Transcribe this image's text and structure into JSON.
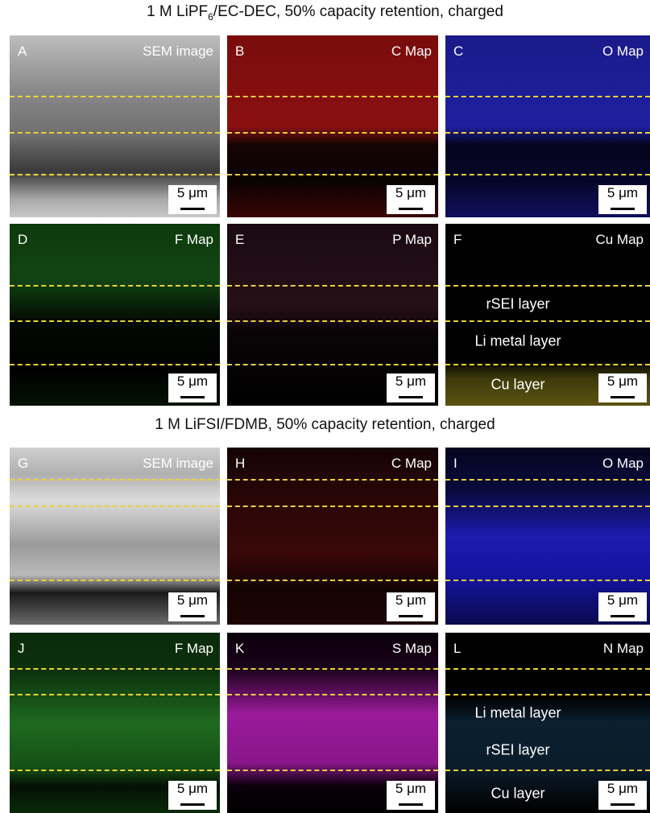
{
  "sections": [
    {
      "title": {
        "before": "1 M LiPF",
        "sub": "6",
        "after": "/EC-DEC, 50% capacity retention, charged"
      },
      "panels": [
        {
          "letter": "A",
          "label": "SEM image",
          "scale": "5 μm",
          "layers": []
        },
        {
          "letter": "B",
          "label": "C Map",
          "scale": "5 μm",
          "layers": []
        },
        {
          "letter": "C",
          "label": "O Map",
          "scale": "5 μm",
          "layers": []
        },
        {
          "letter": "D",
          "label": "F Map",
          "scale": "5 μm",
          "layers": []
        },
        {
          "letter": "E",
          "label": "P Map",
          "scale": "5 μm",
          "layers": []
        },
        {
          "letter": "F",
          "label": "Cu Map",
          "scale": "5 μm",
          "layers": [
            "rSEI layer",
            "Li metal layer",
            "Cu layer"
          ]
        }
      ]
    },
    {
      "title": {
        "before": "1 M LiFSI/FDMB, 50% capacity retention, charged"
      },
      "panels": [
        {
          "letter": "G",
          "label": "SEM image",
          "scale": "5 μm",
          "layers": []
        },
        {
          "letter": "H",
          "label": "C Map",
          "scale": "5 μm",
          "layers": []
        },
        {
          "letter": "I",
          "label": "O Map",
          "scale": "5 μm",
          "layers": []
        },
        {
          "letter": "J",
          "label": "F Map",
          "scale": "5 μm",
          "layers": []
        },
        {
          "letter": "K",
          "label": "S Map",
          "scale": "5 μm",
          "layers": []
        },
        {
          "letter": "L",
          "label": "N Map",
          "scale": "5 μm",
          "layers": [
            "Li metal layer",
            "rSEI layer",
            "Cu layer"
          ]
        }
      ]
    }
  ]
}
